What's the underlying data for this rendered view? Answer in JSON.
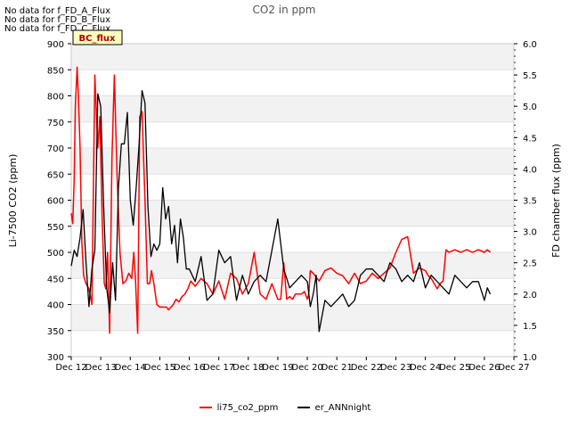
{
  "no_data_messages": [
    "No data for f_FD_A_Flux",
    "No data for f_FD_B_Flux",
    "No data for f_FD_C_Flux"
  ],
  "badge": "BC_flux",
  "chart_data": {
    "type": "line",
    "title": "CO2 in ppm",
    "xlabel": "",
    "ylabel": "Li-7500 CO2 (ppm)",
    "y2label": "FD chamber flux (ppm)",
    "xlim": [
      12,
      27
    ],
    "ylim": [
      300,
      900
    ],
    "y2lim": [
      1.0,
      6.0
    ],
    "x_ticks": [
      12,
      13,
      14,
      15,
      16,
      17,
      18,
      19,
      20,
      21,
      22,
      23,
      24,
      25,
      26,
      27
    ],
    "x_tick_labels": [
      "Dec 12",
      "Dec 13",
      "Dec 14",
      "Dec 15",
      "Dec 16",
      "Dec 17",
      "Dec 18",
      "Dec 19",
      "Dec 20",
      "Dec 21",
      "Dec 22",
      "Dec 23",
      "Dec 24",
      "Dec 25",
      "Dec 26",
      "Dec 27"
    ],
    "y_ticks": [
      300,
      350,
      400,
      450,
      500,
      550,
      600,
      650,
      700,
      750,
      800,
      850,
      900
    ],
    "y2_ticks": [
      1.0,
      1.5,
      2.0,
      2.5,
      3.0,
      3.5,
      4.0,
      4.5,
      5.0,
      5.5,
      6.0
    ],
    "grid": "horizontal bands",
    "legend_position": "bottom-center",
    "series": [
      {
        "name": "li75_co2_ppm",
        "color": "#ff0000",
        "x": [
          12.0,
          12.05,
          12.1,
          12.14,
          12.2,
          12.24,
          12.3,
          12.36,
          12.42,
          12.5,
          12.6,
          12.7,
          12.8,
          12.9,
          12.97,
          13.05,
          13.12,
          13.17,
          13.23,
          13.3,
          13.38,
          13.46,
          13.55,
          13.65,
          13.75,
          13.85,
          13.95,
          14.05,
          14.12,
          14.18,
          14.25,
          14.32,
          14.4,
          14.5,
          14.58,
          14.66,
          14.72,
          14.8,
          14.9,
          15.0,
          15.08,
          15.16,
          15.22,
          15.3,
          15.38,
          15.46,
          15.55,
          15.65,
          15.75,
          15.85,
          15.95,
          16.05,
          16.2,
          16.4,
          16.6,
          16.8,
          17.0,
          17.2,
          17.4,
          17.6,
          17.8,
          18.0,
          18.2,
          18.4,
          18.6,
          18.8,
          19.0,
          19.1,
          19.2,
          19.3,
          19.4,
          19.5,
          19.6,
          19.7,
          19.8,
          19.9,
          20.0,
          20.05,
          20.1,
          20.2,
          20.4,
          20.6,
          20.8,
          21.0,
          21.2,
          21.4,
          21.6,
          21.8,
          22.0,
          22.2,
          22.4,
          22.6,
          22.8,
          23.0,
          23.2,
          23.4,
          23.6,
          23.8,
          24.0,
          24.1,
          24.2,
          24.3,
          24.4,
          24.5,
          24.6,
          24.7,
          24.8,
          25.0,
          25.2,
          25.4,
          25.6,
          25.8,
          26.0,
          26.1,
          26.2
        ],
        "values": [
          575,
          555,
          640,
          780,
          855,
          800,
          700,
          520,
          455,
          440,
          430,
          400,
          840,
          700,
          760,
          560,
          440,
          430,
          500,
          345,
          680,
          840,
          650,
          500,
          440,
          445,
          460,
          450,
          500,
          445,
          345,
          760,
          770,
          600,
          440,
          440,
          465,
          440,
          400,
          395,
          395,
          395,
          395,
          390,
          395,
          400,
          410,
          405,
          415,
          420,
          430,
          445,
          435,
          450,
          440,
          420,
          445,
          410,
          460,
          450,
          420,
          440,
          500,
          420,
          410,
          440,
          410,
          410,
          480,
          410,
          415,
          410,
          420,
          420,
          420,
          425,
          410,
          420,
          465,
          460,
          445,
          465,
          470,
          460,
          455,
          440,
          460,
          440,
          445,
          460,
          450,
          460,
          470,
          500,
          525,
          530,
          460,
          470,
          465,
          455,
          450,
          440,
          430,
          440,
          445,
          505,
          500,
          505,
          500,
          505,
          500,
          505,
          500,
          505,
          500
        ]
      },
      {
        "name": "er_ANNnight",
        "color": "#000000",
        "x": [
          12.0,
          12.1,
          12.2,
          12.3,
          12.4,
          12.5,
          12.6,
          12.7,
          12.8,
          12.9,
          13.0,
          13.1,
          13.2,
          13.3,
          13.4,
          13.5,
          13.6,
          13.7,
          13.8,
          13.9,
          14.0,
          14.1,
          14.2,
          14.3,
          14.4,
          14.5,
          14.6,
          14.7,
          14.8,
          14.9,
          15.0,
          15.1,
          15.2,
          15.3,
          15.4,
          15.5,
          15.6,
          15.7,
          15.8,
          15.9,
          16.0,
          16.2,
          16.4,
          16.6,
          16.8,
          17.0,
          17.2,
          17.4,
          17.6,
          17.8,
          18.0,
          18.2,
          18.4,
          18.6,
          18.8,
          19.0,
          19.2,
          19.4,
          19.6,
          19.8,
          20.0,
          20.1,
          20.2,
          20.3,
          20.4,
          20.6,
          20.8,
          21.0,
          21.2,
          21.4,
          21.6,
          21.8,
          22.0,
          22.2,
          22.4,
          22.6,
          22.8,
          23.0,
          23.2,
          23.4,
          23.6,
          23.8,
          24.0,
          24.2,
          24.4,
          24.6,
          24.8,
          25.0,
          25.2,
          25.4,
          25.6,
          25.8,
          26.0,
          26.1,
          26.2
        ],
        "values": [
          2.45,
          2.7,
          2.6,
          2.9,
          3.35,
          2.5,
          1.8,
          2.4,
          2.7,
          5.2,
          5.0,
          3.4,
          2.1,
          1.7,
          2.5,
          1.9,
          3.7,
          4.4,
          4.4,
          4.9,
          3.5,
          3.1,
          3.7,
          4.4,
          5.25,
          5.05,
          3.4,
          2.6,
          2.8,
          2.7,
          2.8,
          3.7,
          3.2,
          3.4,
          2.8,
          3.1,
          2.5,
          3.2,
          2.9,
          2.4,
          2.4,
          2.2,
          2.6,
          1.9,
          2.0,
          2.7,
          2.5,
          2.6,
          1.9,
          2.3,
          2.0,
          2.2,
          2.3,
          2.2,
          2.7,
          3.2,
          2.4,
          2.1,
          2.2,
          2.3,
          2.2,
          1.8,
          2.0,
          2.3,
          1.4,
          1.9,
          1.8,
          1.9,
          2.0,
          1.8,
          1.9,
          2.3,
          2.4,
          2.4,
          2.3,
          2.2,
          2.5,
          2.4,
          2.2,
          2.3,
          2.2,
          2.5,
          2.1,
          2.3,
          2.2,
          2.1,
          2.0,
          2.3,
          2.2,
          2.1,
          2.2,
          2.2,
          1.9,
          2.1,
          2.0
        ]
      }
    ]
  }
}
